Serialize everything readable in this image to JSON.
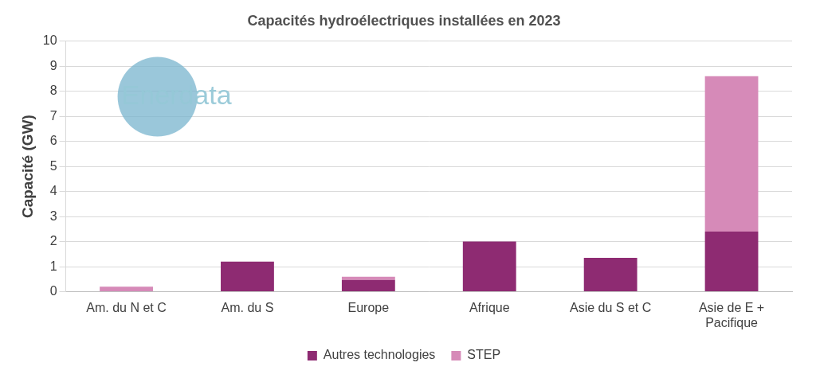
{
  "chart_data": {
    "type": "bar",
    "title": "Capacités hydroélectriques installées en 2023",
    "y_label": "Capacité (GW)",
    "categories": [
      "Am. du N et C",
      "Am. du S",
      "Europe",
      "Afrique",
      "Asie du S et C",
      "Asie de E +\nPacifique"
    ],
    "series": [
      {
        "name": "Autres technologies",
        "color": "#8e2b72",
        "values": [
          0,
          1.2,
          0.47,
          2.0,
          1.35,
          2.4
        ]
      },
      {
        "name": "STEP",
        "color": "#d68ab8",
        "values": [
          0.2,
          0,
          0.13,
          0,
          0,
          6.2
        ]
      }
    ],
    "stacked": true,
    "ylim": [
      0,
      10
    ],
    "yticks": [
      0,
      1,
      2,
      3,
      4,
      5,
      6,
      7,
      8,
      9,
      10
    ],
    "grid": true,
    "legend": "bottom",
    "annotations": [
      "Enerdata"
    ]
  }
}
